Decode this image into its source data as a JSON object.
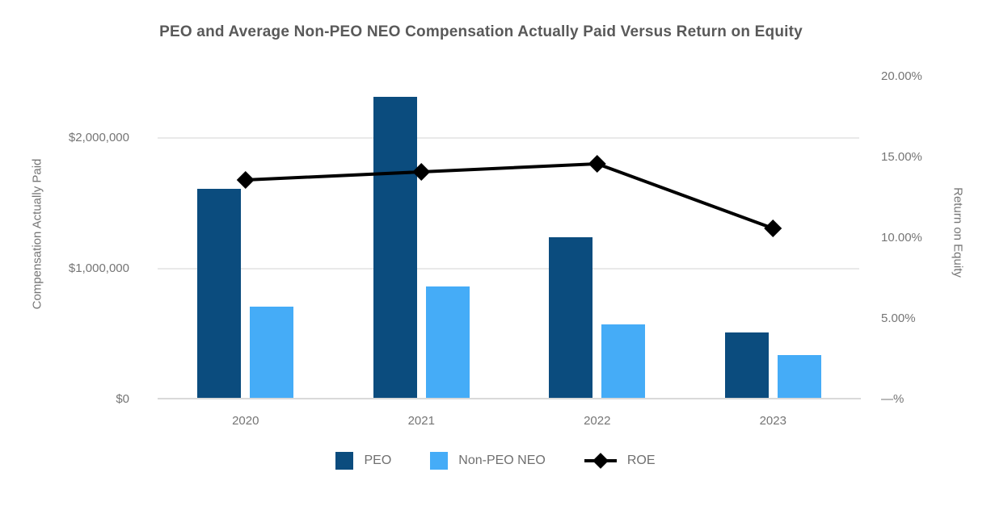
{
  "title": "PEO and Average Non-PEO NEO Compensation Actually Paid Versus Return on Equity",
  "background_color": "#FFFFFF",
  "chart_data": {
    "type": "bar",
    "subtype": "dual-axis bar and line combo",
    "categories": [
      "2020",
      "2021",
      "2022",
      "2023"
    ],
    "series": [
      {
        "name": "PEO",
        "kind": "bar",
        "axis": "left",
        "color": "#0B4C7E",
        "values": [
          1600000,
          2300000,
          1230000,
          500000
        ]
      },
      {
        "name": "Non-PEO NEO",
        "kind": "bar",
        "axis": "left",
        "color": "#45ACF7",
        "values": [
          700000,
          850000,
          560000,
          330000
        ]
      },
      {
        "name": "ROE",
        "kind": "line",
        "axis": "right",
        "color": "#000000",
        "marker": "diamond",
        "values": [
          13.6,
          14.1,
          14.6,
          10.6
        ]
      }
    ],
    "title": "PEO and Average Non-PEO NEO Compensation Actually Paid Versus Return on Equity",
    "xlabel": "",
    "left_axis": {
      "label": "Compensation Actually Paid",
      "ticks": [
        "$0",
        "$1,000,000",
        "$2,000,000"
      ],
      "tick_values": [
        0,
        1000000,
        2000000
      ],
      "range": [
        0,
        2500000
      ]
    },
    "right_axis": {
      "label": "Return on Equity",
      "ticks": [
        "—%",
        "5.00%",
        "10.00%",
        "15.00%",
        "20.00%"
      ],
      "tick_values": [
        0,
        5,
        10,
        15,
        20
      ],
      "range": [
        0,
        20.25
      ]
    },
    "grid": "horizontal gridlines on",
    "legend_position": "bottom center",
    "legend": [
      "PEO",
      "Non-PEO NEO",
      "ROE"
    ]
  },
  "style_colors": {
    "title_text": "#595959",
    "axis_text": "#757575",
    "legend_text": "#6F6F6F",
    "gridline": "#E9E9E9",
    "baseline": "#D9D9D9"
  }
}
